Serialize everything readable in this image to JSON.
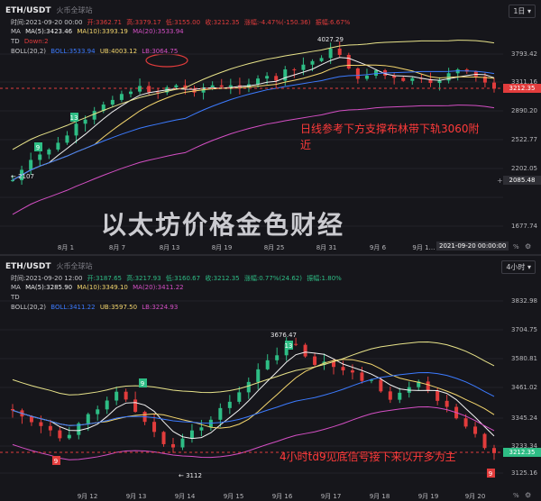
{
  "top": {
    "symbol": "ETH/USDT",
    "venue": "火币全球站",
    "period": "1日",
    "ohlc": {
      "time_label": "时间:2021-09-20 00:00",
      "open_label": "开:3362.71",
      "high_label": "高:3379.17",
      "low_label": "低:3155.00",
      "close_label": "收:3212.35",
      "change_label": "涨幅:-4.47%(-150.36)",
      "amplitude_label": "振幅:6.67%"
    },
    "ma": {
      "name": "MA",
      "ma5": "MA(5):3423.46",
      "ma10": "MA(10):3393.19",
      "ma20": "MA(20):3533.94"
    },
    "td": {
      "name": "TD",
      "value": "Down:2"
    },
    "boll": {
      "name": "BOLL(20,2)",
      "boll": "BOLL:3533.94",
      "ub": "UB:4003.12",
      "lb": "LB:3064.75"
    },
    "y_ticks": [
      "3793.42",
      "3311.16",
      "2890.20",
      "2522.77",
      "2202.05",
      "1677.74"
    ],
    "current_price": "3212.35",
    "crosshair_price": "2085.48",
    "x_ticks": [
      "8月 1",
      "8月 7",
      "8月 13",
      "8月 19",
      "8月 25",
      "8月 31",
      "9月 6",
      "9月 1…"
    ],
    "x_crosshair_label": "2021-09-20 00:00:00",
    "high_label": "4027.29",
    "low_label": "2107",
    "annotation_line1": "日线参考下方支撑布林带下轨3060附",
    "annotation_line2": "近",
    "watermark": "以太坊价格金色财经",
    "colors": {
      "up": "#2ebd85",
      "down": "#e23c3c",
      "ma5": "#f2f2f2",
      "ma10": "#f5d76e",
      "ma20": "#3c7bff",
      "boll": "#e8e38a",
      "ub": "#e8e38a",
      "lb": "#d44fc4"
    }
  },
  "bottom": {
    "symbol": "ETH/USDT",
    "venue": "火币全球站",
    "period": "4小时",
    "ohlc": {
      "time_label": "时间:2021-09-20 12:00",
      "open_label": "开:3187.65",
      "high_label": "高:3217.93",
      "low_label": "低:3160.67",
      "close_label": "收:3212.35",
      "change_label": "涨幅:0.77%(24.62)",
      "amplitude_label": "振幅:1.80%"
    },
    "ma": {
      "name": "MA",
      "ma5": "MA(5):3285.90",
      "ma10": "MA(10):3349.10",
      "ma20": "MA(20):3411.22"
    },
    "td": {
      "name": "TD",
      "value": ""
    },
    "boll": {
      "name": "BOLL(20,2)",
      "boll": "BOLL:3411.22",
      "ub": "UB:3597.50",
      "lb": "LB:3224.93"
    },
    "y_ticks": [
      "3832.98",
      "3704.75",
      "3580.81",
      "3461.02",
      "3345.24",
      "3233.34",
      "3125.16"
    ],
    "current_price": "3212.35",
    "x_ticks": [
      "9月 12",
      "9月 13",
      "9月 14",
      "9月 15",
      "9月 16",
      "9月 17",
      "9月 18",
      "9月 19",
      "9月 20"
    ],
    "high_label": "3676.47",
    "low_label": "3112",
    "annotation": "4小时td9见底信号接下来以开多为主"
  }
}
